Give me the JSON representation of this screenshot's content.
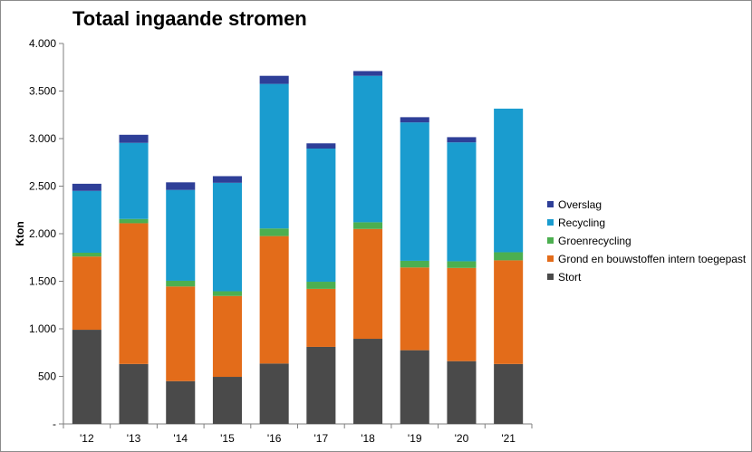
{
  "chart_data": {
    "type": "bar",
    "stacked": true,
    "title": "Totaal ingaande stromen",
    "ylabel": "Kton",
    "xlabel": "",
    "ylim": [
      0,
      4000
    ],
    "yticks": [
      0,
      500,
      1000,
      1500,
      2000,
      2500,
      3000,
      3500,
      4000
    ],
    "ytick_labels": [
      "-",
      "500",
      "1.000",
      "1.500",
      "2.000",
      "2.500",
      "3.000",
      "3.500",
      "4.000"
    ],
    "categories": [
      "'12",
      "'13",
      "'14",
      "'15",
      "'16",
      "'17",
      "'18",
      "'19",
      "'20",
      "'21"
    ],
    "grid": false,
    "legend_position": "right",
    "series": [
      {
        "name": "Stort",
        "color": "#4a4a4a",
        "values": [
          990,
          630,
          450,
          495,
          635,
          810,
          895,
          775,
          660,
          630
        ]
      },
      {
        "name": "Grond en bouwstoffen intern toegepast",
        "color": "#e36c1a",
        "values": [
          770,
          1480,
          995,
          850,
          1340,
          610,
          1155,
          870,
          980,
          1090
        ]
      },
      {
        "name": "Groenrecycling",
        "color": "#4caf50",
        "values": [
          40,
          45,
          60,
          50,
          80,
          75,
          70,
          70,
          70,
          85
        ]
      },
      {
        "name": "Recycling",
        "color": "#1a9ccf",
        "values": [
          650,
          800,
          955,
          1140,
          1520,
          1400,
          1540,
          1455,
          1250,
          1510
        ]
      },
      {
        "name": "Overslag",
        "color": "#2e3f98",
        "values": [
          75,
          85,
          80,
          70,
          85,
          55,
          50,
          55,
          55,
          0
        ]
      }
    ]
  }
}
